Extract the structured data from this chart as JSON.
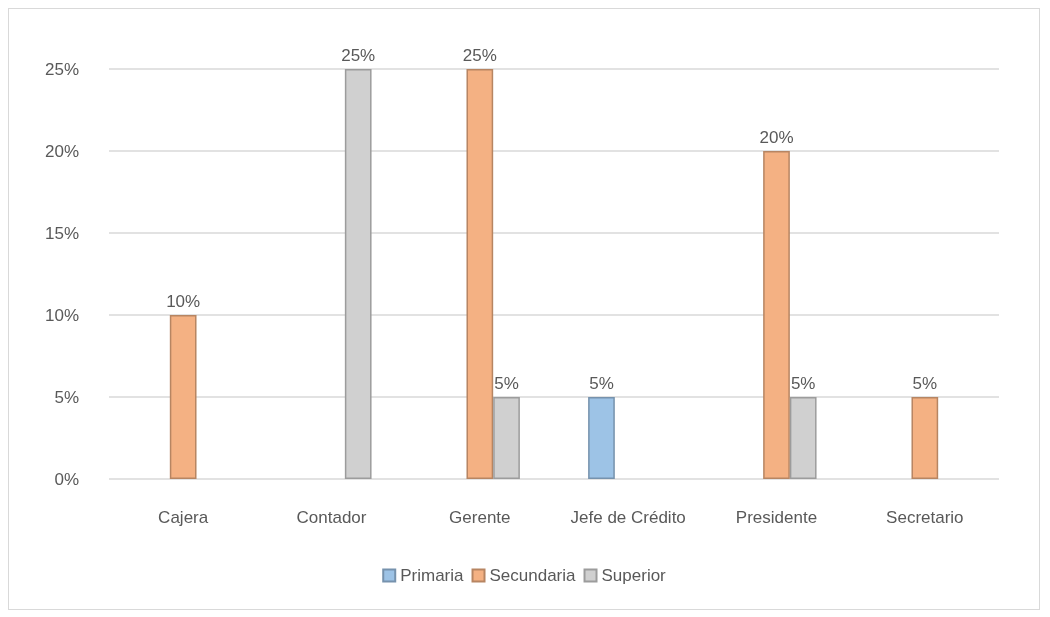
{
  "chart_data": {
    "type": "bar",
    "categories": [
      "Cajera",
      "Contador",
      "Gerente",
      "Jefe de Crédito",
      "Presidente",
      "Secretario"
    ],
    "series": [
      {
        "name": "Primaria",
        "color": "#9dc3e6",
        "values": [
          null,
          null,
          null,
          5,
          null,
          null
        ],
        "value_labels": [
          null,
          null,
          null,
          "5%",
          null,
          null
        ]
      },
      {
        "name": "Secundaria",
        "color": "#f4b183",
        "values": [
          10,
          null,
          25,
          null,
          20,
          5
        ],
        "value_labels": [
          "10%",
          null,
          "25%",
          null,
          "20%",
          "5%"
        ]
      },
      {
        "name": "Superior",
        "color": "#d0d0d0",
        "values": [
          null,
          25,
          5,
          null,
          5,
          null
        ],
        "value_labels": [
          null,
          "25%",
          "5%",
          null,
          "5%",
          null
        ]
      }
    ],
    "ylim": [
      0,
      25
    ],
    "yticks": [
      {
        "value": 0,
        "label": "0%"
      },
      {
        "value": 5,
        "label": "5%"
      },
      {
        "value": 10,
        "label": "10%"
      },
      {
        "value": 15,
        "label": "15%"
      },
      {
        "value": 20,
        "label": "20%"
      },
      {
        "value": 25,
        "label": "25%"
      }
    ],
    "grid": "y",
    "legend": "bottom"
  }
}
